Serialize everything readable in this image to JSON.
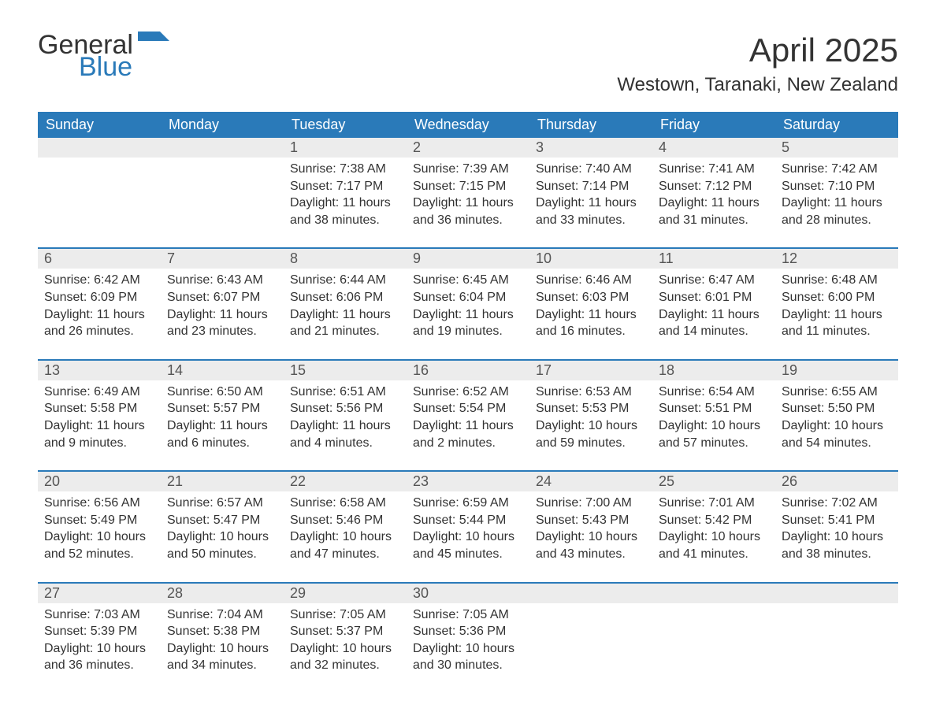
{
  "logo": {
    "general": "General",
    "blue": "Blue"
  },
  "title": "April 2025",
  "location": "Westown, Taranaki, New Zealand",
  "colors": {
    "header_bg": "#2a7ab9",
    "header_text": "#ffffff",
    "daynum_bg": "#ececec",
    "text": "#333333",
    "logo_blue": "#2a7ab9"
  },
  "fonts": {
    "title_size": 42,
    "location_size": 24,
    "header_size": 18,
    "body_size": 16
  },
  "day_headers": [
    "Sunday",
    "Monday",
    "Tuesday",
    "Wednesday",
    "Thursday",
    "Friday",
    "Saturday"
  ],
  "weeks": [
    [
      null,
      null,
      {
        "n": "1",
        "sunrise": "Sunrise: 7:38 AM",
        "sunset": "Sunset: 7:17 PM",
        "d1": "Daylight: 11 hours",
        "d2": "and 38 minutes."
      },
      {
        "n": "2",
        "sunrise": "Sunrise: 7:39 AM",
        "sunset": "Sunset: 7:15 PM",
        "d1": "Daylight: 11 hours",
        "d2": "and 36 minutes."
      },
      {
        "n": "3",
        "sunrise": "Sunrise: 7:40 AM",
        "sunset": "Sunset: 7:14 PM",
        "d1": "Daylight: 11 hours",
        "d2": "and 33 minutes."
      },
      {
        "n": "4",
        "sunrise": "Sunrise: 7:41 AM",
        "sunset": "Sunset: 7:12 PM",
        "d1": "Daylight: 11 hours",
        "d2": "and 31 minutes."
      },
      {
        "n": "5",
        "sunrise": "Sunrise: 7:42 AM",
        "sunset": "Sunset: 7:10 PM",
        "d1": "Daylight: 11 hours",
        "d2": "and 28 minutes."
      }
    ],
    [
      {
        "n": "6",
        "sunrise": "Sunrise: 6:42 AM",
        "sunset": "Sunset: 6:09 PM",
        "d1": "Daylight: 11 hours",
        "d2": "and 26 minutes."
      },
      {
        "n": "7",
        "sunrise": "Sunrise: 6:43 AM",
        "sunset": "Sunset: 6:07 PM",
        "d1": "Daylight: 11 hours",
        "d2": "and 23 minutes."
      },
      {
        "n": "8",
        "sunrise": "Sunrise: 6:44 AM",
        "sunset": "Sunset: 6:06 PM",
        "d1": "Daylight: 11 hours",
        "d2": "and 21 minutes."
      },
      {
        "n": "9",
        "sunrise": "Sunrise: 6:45 AM",
        "sunset": "Sunset: 6:04 PM",
        "d1": "Daylight: 11 hours",
        "d2": "and 19 minutes."
      },
      {
        "n": "10",
        "sunrise": "Sunrise: 6:46 AM",
        "sunset": "Sunset: 6:03 PM",
        "d1": "Daylight: 11 hours",
        "d2": "and 16 minutes."
      },
      {
        "n": "11",
        "sunrise": "Sunrise: 6:47 AM",
        "sunset": "Sunset: 6:01 PM",
        "d1": "Daylight: 11 hours",
        "d2": "and 14 minutes."
      },
      {
        "n": "12",
        "sunrise": "Sunrise: 6:48 AM",
        "sunset": "Sunset: 6:00 PM",
        "d1": "Daylight: 11 hours",
        "d2": "and 11 minutes."
      }
    ],
    [
      {
        "n": "13",
        "sunrise": "Sunrise: 6:49 AM",
        "sunset": "Sunset: 5:58 PM",
        "d1": "Daylight: 11 hours",
        "d2": "and 9 minutes."
      },
      {
        "n": "14",
        "sunrise": "Sunrise: 6:50 AM",
        "sunset": "Sunset: 5:57 PM",
        "d1": "Daylight: 11 hours",
        "d2": "and 6 minutes."
      },
      {
        "n": "15",
        "sunrise": "Sunrise: 6:51 AM",
        "sunset": "Sunset: 5:56 PM",
        "d1": "Daylight: 11 hours",
        "d2": "and 4 minutes."
      },
      {
        "n": "16",
        "sunrise": "Sunrise: 6:52 AM",
        "sunset": "Sunset: 5:54 PM",
        "d1": "Daylight: 11 hours",
        "d2": "and 2 minutes."
      },
      {
        "n": "17",
        "sunrise": "Sunrise: 6:53 AM",
        "sunset": "Sunset: 5:53 PM",
        "d1": "Daylight: 10 hours",
        "d2": "and 59 minutes."
      },
      {
        "n": "18",
        "sunrise": "Sunrise: 6:54 AM",
        "sunset": "Sunset: 5:51 PM",
        "d1": "Daylight: 10 hours",
        "d2": "and 57 minutes."
      },
      {
        "n": "19",
        "sunrise": "Sunrise: 6:55 AM",
        "sunset": "Sunset: 5:50 PM",
        "d1": "Daylight: 10 hours",
        "d2": "and 54 minutes."
      }
    ],
    [
      {
        "n": "20",
        "sunrise": "Sunrise: 6:56 AM",
        "sunset": "Sunset: 5:49 PM",
        "d1": "Daylight: 10 hours",
        "d2": "and 52 minutes."
      },
      {
        "n": "21",
        "sunrise": "Sunrise: 6:57 AM",
        "sunset": "Sunset: 5:47 PM",
        "d1": "Daylight: 10 hours",
        "d2": "and 50 minutes."
      },
      {
        "n": "22",
        "sunrise": "Sunrise: 6:58 AM",
        "sunset": "Sunset: 5:46 PM",
        "d1": "Daylight: 10 hours",
        "d2": "and 47 minutes."
      },
      {
        "n": "23",
        "sunrise": "Sunrise: 6:59 AM",
        "sunset": "Sunset: 5:44 PM",
        "d1": "Daylight: 10 hours",
        "d2": "and 45 minutes."
      },
      {
        "n": "24",
        "sunrise": "Sunrise: 7:00 AM",
        "sunset": "Sunset: 5:43 PM",
        "d1": "Daylight: 10 hours",
        "d2": "and 43 minutes."
      },
      {
        "n": "25",
        "sunrise": "Sunrise: 7:01 AM",
        "sunset": "Sunset: 5:42 PM",
        "d1": "Daylight: 10 hours",
        "d2": "and 41 minutes."
      },
      {
        "n": "26",
        "sunrise": "Sunrise: 7:02 AM",
        "sunset": "Sunset: 5:41 PM",
        "d1": "Daylight: 10 hours",
        "d2": "and 38 minutes."
      }
    ],
    [
      {
        "n": "27",
        "sunrise": "Sunrise: 7:03 AM",
        "sunset": "Sunset: 5:39 PM",
        "d1": "Daylight: 10 hours",
        "d2": "and 36 minutes."
      },
      {
        "n": "28",
        "sunrise": "Sunrise: 7:04 AM",
        "sunset": "Sunset: 5:38 PM",
        "d1": "Daylight: 10 hours",
        "d2": "and 34 minutes."
      },
      {
        "n": "29",
        "sunrise": "Sunrise: 7:05 AM",
        "sunset": "Sunset: 5:37 PM",
        "d1": "Daylight: 10 hours",
        "d2": "and 32 minutes."
      },
      {
        "n": "30",
        "sunrise": "Sunrise: 7:05 AM",
        "sunset": "Sunset: 5:36 PM",
        "d1": "Daylight: 10 hours",
        "d2": "and 30 minutes."
      },
      null,
      null,
      null
    ]
  ]
}
